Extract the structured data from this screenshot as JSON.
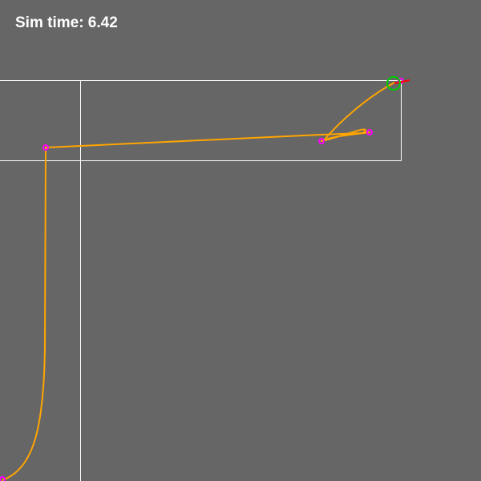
{
  "hud": {
    "sim_time_label": "Sim time: 6.42"
  },
  "colors": {
    "background": "#666666",
    "hud_text": "#ffffff",
    "wall": "#ffffff",
    "trajectory": "#ffa500",
    "waypoint": "#ff00ff",
    "agent_ring": "#00cc00",
    "agent_heading": "#ff0000"
  },
  "icons": {
    "waypoint": "waypoint-marker-icon",
    "agent": "agent-ring-icon",
    "heading": "heading-indicator-icon"
  }
}
